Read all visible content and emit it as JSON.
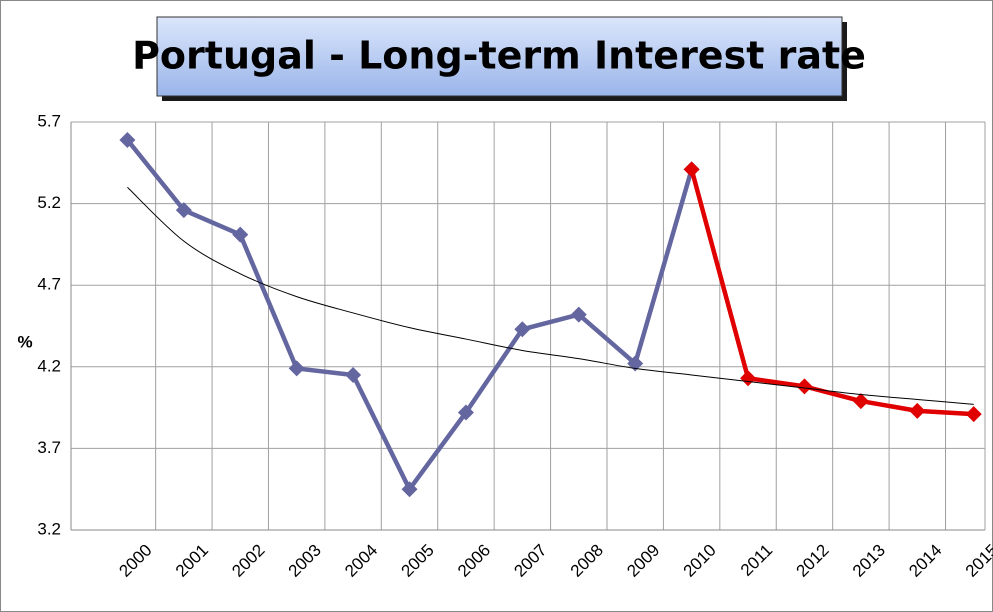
{
  "chart_data": {
    "type": "line",
    "title": "Portugal - Long-term Interest rate",
    "ylabel": "%",
    "categories": [
      "2000",
      "2001",
      "2002",
      "2003",
      "2004",
      "2005",
      "2006",
      "2007",
      "2008",
      "2009",
      "2010",
      "2011",
      "2012",
      "2013",
      "2014",
      "2015"
    ],
    "series": [
      {
        "color": "#6466a0",
        "values": [
          5.59,
          5.16,
          5.01,
          4.19,
          4.15,
          3.45,
          3.92,
          4.43,
          4.52,
          4.22,
          5.41,
          null,
          null,
          null,
          null,
          null
        ]
      },
      {
        "color": "#e00000",
        "values": [
          null,
          null,
          null,
          null,
          null,
          null,
          null,
          null,
          null,
          null,
          5.41,
          4.13,
          4.08,
          3.99,
          3.93,
          3.91
        ]
      }
    ],
    "trendline": {
      "type": "log",
      "color": "#000000",
      "values": [
        5.3,
        4.97,
        4.77,
        4.63,
        4.53,
        4.44,
        4.37,
        4.3,
        4.25,
        4.19,
        4.15,
        4.11,
        4.07,
        4.03,
        4.0,
        3.97
      ]
    },
    "ylim": [
      3.2,
      5.7
    ],
    "yticks": [
      3.2,
      3.7,
      4.2,
      4.7,
      5.2,
      5.7
    ],
    "grid": true
  }
}
